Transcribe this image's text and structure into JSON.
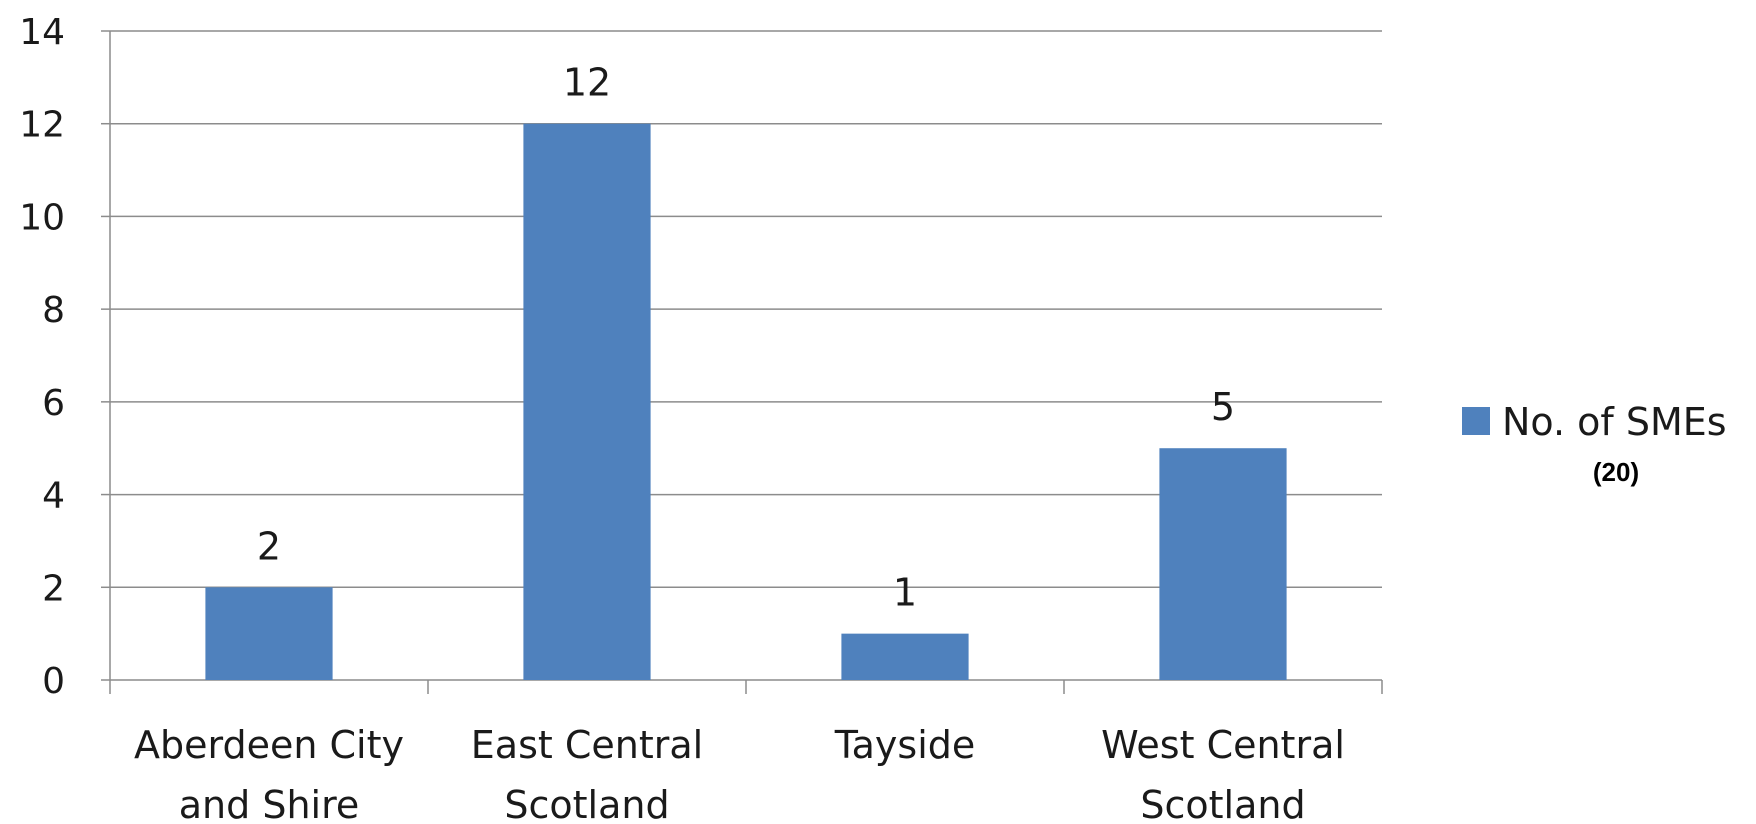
{
  "chart_data": {
    "type": "bar",
    "categories": [
      [
        "Aberdeen City",
        "and Shire"
      ],
      [
        "East Central",
        "Scotland"
      ],
      [
        "Tayside"
      ],
      [
        "West Central",
        "Scotland"
      ]
    ],
    "series": [
      {
        "name": "No. of SMEs",
        "values": [
          2,
          12,
          1,
          5
        ],
        "color": "#4F81BD"
      }
    ],
    "data_labels": [
      "2",
      "12",
      "1",
      "5"
    ],
    "ylim": [
      0,
      14
    ],
    "y_ticks": [
      0,
      2,
      4,
      6,
      8,
      10,
      12,
      14
    ],
    "grid": true,
    "legend_position": "right",
    "legend_note": "(20)",
    "title": "",
    "xlabel": "",
    "ylabel": ""
  }
}
